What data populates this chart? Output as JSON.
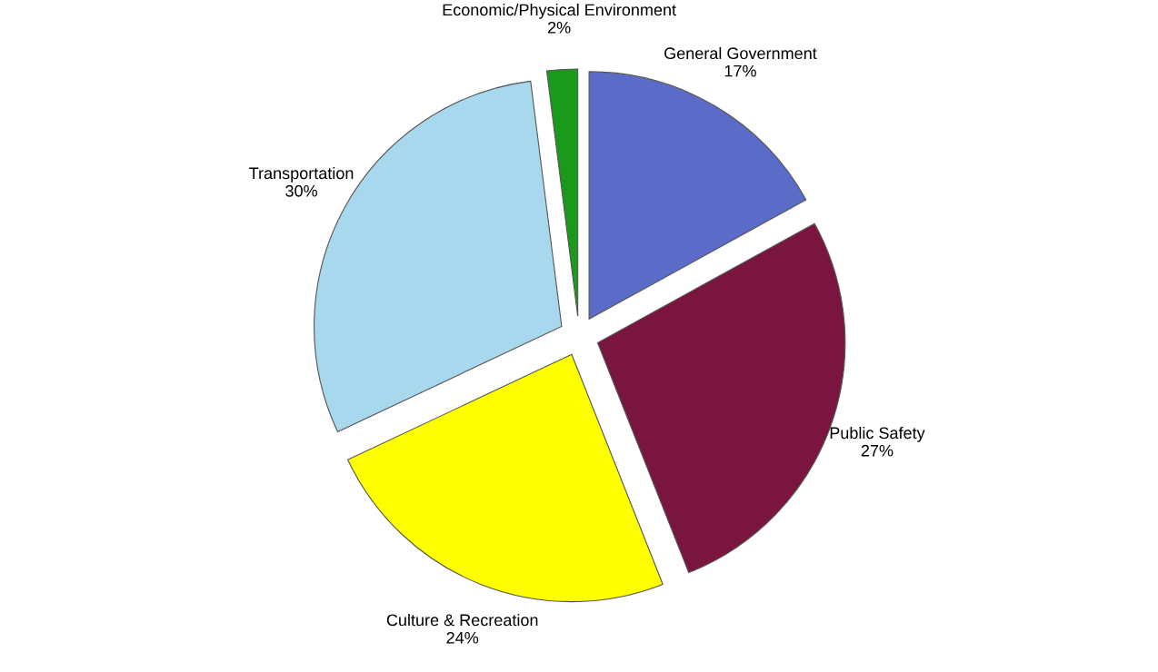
{
  "chart_data": {
    "type": "pie",
    "categories": [
      "General Government",
      "Public Safety",
      "Culture & Recreation",
      "Transportation",
      "Economic/Physical Environment"
    ],
    "values": [
      17,
      27,
      24,
      30,
      2
    ],
    "value_labels": [
      "17%",
      "27%",
      "24%",
      "30%",
      "2%"
    ],
    "colors": [
      "#5b6bc8",
      "#7a1540",
      "#ffff00",
      "#a8d8ee",
      "#1a9a1a"
    ],
    "legend": false
  }
}
